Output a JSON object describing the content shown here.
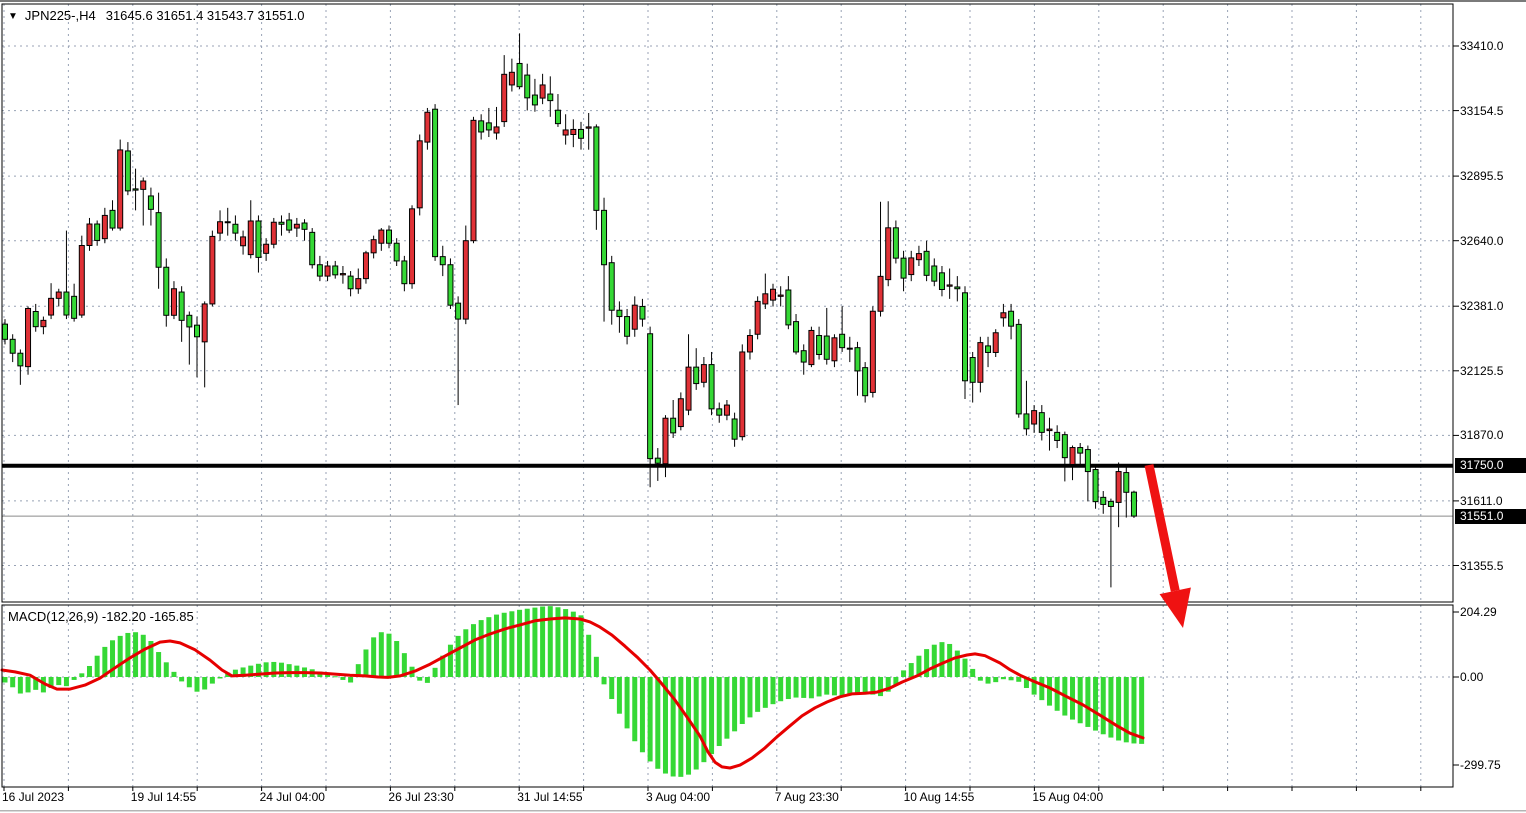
{
  "window": {
    "title_symbol": "JPN225-,H4",
    "title_quote": "31645.6 31651.4 31543.7 31551.0",
    "dropdown_icon": "▼"
  },
  "indicator": {
    "label": "MACD(12,26,9) -182.20 -165.85",
    "name": "MACD",
    "params": [
      12,
      26,
      9
    ],
    "macd_value": -182.2,
    "signal_value": -165.85
  },
  "price_scale": {
    "labels": [
      "33410.0",
      "33154.5",
      "32895.5",
      "32640.0",
      "32381.0",
      "32125.5",
      "31870.0",
      "31611.0",
      "31355.5"
    ],
    "badges": [
      {
        "text": "31750.0",
        "value": 31750.0,
        "role": "resistance-level"
      },
      {
        "text": "31551.0",
        "value": 31551.0,
        "role": "current-price"
      }
    ],
    "macd_labels": [
      "204.29",
      "0.00",
      "-299.75"
    ]
  },
  "time_scale": {
    "labels": [
      {
        "text": "16 Jul 2023",
        "grid_index": 0
      },
      {
        "text": "19 Jul 14:55",
        "grid_index": 2
      },
      {
        "text": "24 Jul 04:00",
        "grid_index": 4
      },
      {
        "text": "26 Jul 23:30",
        "grid_index": 6
      },
      {
        "text": "31 Jul 14:55",
        "grid_index": 8
      },
      {
        "text": "3 Aug 04:00",
        "grid_index": 10
      },
      {
        "text": "7 Aug 23:30",
        "grid_index": 12
      },
      {
        "text": "10 Aug 14:55",
        "grid_index": 14
      },
      {
        "text": "15 Aug 04:00",
        "grid_index": 16
      }
    ]
  },
  "colors": {
    "bull": "#e03136",
    "bear": "#35d835",
    "wick": "#000000",
    "macd_histogram": "#35d835",
    "macd_signal": "#e60000",
    "grid": "#98a2b5",
    "level_line": "#000000",
    "current_price_line": "#8a8a8a",
    "arrow": "#ef1212",
    "badge_bg": "#000000",
    "badge_text": "#ffffff",
    "border": "#000000"
  },
  "chart_data": {
    "type": "candlestick+macd",
    "symbol": "JPN225-",
    "timeframe": "H4",
    "last_ohlc": {
      "open": 31645.6,
      "high": 31651.4,
      "low": 31543.7,
      "close": 31551.0
    },
    "price_gridlines": [
      33410.0,
      33154.5,
      32895.5,
      32640.0,
      32381.0,
      32125.5,
      31870.0,
      31611.0,
      31355.5
    ],
    "price_axis_range": [
      31170.0,
      33585.0
    ],
    "macd_gridlines": [
      204.29,
      0.0,
      -299.75
    ],
    "levels": {
      "resistance": 31750.0,
      "current_price": 31551.0
    },
    "candles": [
      [
        32310,
        32330,
        32230,
        32250
      ],
      [
        32250,
        32270,
        32160,
        32195
      ],
      [
        32195,
        32210,
        32070,
        32145
      ],
      [
        32142,
        32380,
        32110,
        32372
      ],
      [
        32360,
        32390,
        32280,
        32300
      ],
      [
        32300,
        32340,
        32270,
        32325
      ],
      [
        32346,
        32472,
        32330,
        32412
      ],
      [
        32412,
        32450,
        32380,
        32437
      ],
      [
        32437,
        32680,
        32330,
        32346
      ],
      [
        32420,
        32470,
        32320,
        32333
      ],
      [
        32346,
        32660,
        32335,
        32621
      ],
      [
        32621,
        32730,
        32600,
        32706
      ],
      [
        32706,
        32720,
        32620,
        32641
      ],
      [
        32648,
        32770,
        32630,
        32740
      ],
      [
        32760,
        32800,
        32680,
        32690
      ],
      [
        32690,
        33040,
        32680,
        32999
      ],
      [
        32995,
        33030,
        32820,
        32837
      ],
      [
        32845,
        32925,
        32760,
        32840
      ],
      [
        32843,
        32890,
        32700,
        32876
      ],
      [
        32817,
        32850,
        32700,
        32764
      ],
      [
        32751,
        32830,
        32450,
        32535
      ],
      [
        32535,
        32570,
        32300,
        32345
      ],
      [
        32345,
        32480,
        32330,
        32450
      ],
      [
        32437,
        32460,
        32240,
        32325
      ],
      [
        32345,
        32360,
        32150,
        32299
      ],
      [
        32306,
        32340,
        32100,
        32260
      ],
      [
        32240,
        32400,
        32060,
        32390
      ],
      [
        32390,
        32680,
        32380,
        32657
      ],
      [
        32670,
        32760,
        32640,
        32715
      ],
      [
        32715,
        32770,
        32660,
        32712
      ],
      [
        32705,
        32740,
        32640,
        32670
      ],
      [
        32620,
        32680,
        32585,
        32655
      ],
      [
        32585,
        32800,
        32570,
        32718
      ],
      [
        32718,
        32740,
        32514,
        32574
      ],
      [
        32590,
        32650,
        32560,
        32626
      ],
      [
        32626,
        32730,
        32610,
        32713
      ],
      [
        32713,
        32740,
        32660,
        32705
      ],
      [
        32722,
        32750,
        32670,
        32682
      ],
      [
        32690,
        32730,
        32655,
        32705
      ],
      [
        32710,
        32725,
        32640,
        32685
      ],
      [
        32673,
        32690,
        32530,
        32545
      ],
      [
        32545,
        32580,
        32480,
        32500
      ],
      [
        32500,
        32560,
        32480,
        32540
      ],
      [
        32540,
        32560,
        32490,
        32505
      ],
      [
        32505,
        32540,
        32470,
        32510
      ],
      [
        32500,
        32520,
        32420,
        32450
      ],
      [
        32450,
        32530,
        32430,
        32490
      ],
      [
        32490,
        32600,
        32470,
        32592
      ],
      [
        32592,
        32660,
        32570,
        32644
      ],
      [
        32630,
        32690,
        32600,
        32682
      ],
      [
        32682,
        32700,
        32610,
        32630
      ],
      [
        32630,
        32650,
        32540,
        32560
      ],
      [
        32560,
        32580,
        32440,
        32470
      ],
      [
        32470,
        32780,
        32450,
        32766
      ],
      [
        32770,
        33060,
        32740,
        33035
      ],
      [
        33030,
        33165,
        33000,
        33148
      ],
      [
        33160,
        33180,
        32560,
        32577
      ],
      [
        32577,
        32620,
        32500,
        32545
      ],
      [
        32545,
        32570,
        32370,
        32385
      ],
      [
        32393,
        32420,
        31990,
        32330
      ],
      [
        32330,
        32700,
        32310,
        32640
      ],
      [
        32640,
        33130,
        32630,
        33116
      ],
      [
        33114,
        33140,
        33040,
        33070
      ],
      [
        33106,
        33165,
        33050,
        33078
      ],
      [
        33066,
        33169,
        33040,
        33090
      ],
      [
        33111,
        33374,
        33090,
        33298
      ],
      [
        33256,
        33360,
        33230,
        33306
      ],
      [
        33341,
        33460,
        33240,
        33249
      ],
      [
        33295,
        33340,
        33155,
        33205
      ],
      [
        33216,
        33280,
        33150,
        33177
      ],
      [
        33204,
        33300,
        33180,
        33256
      ],
      [
        33220,
        33290,
        33130,
        33194
      ],
      [
        33156,
        33220,
        33090,
        33103
      ],
      [
        33058,
        33140,
        33020,
        33078
      ],
      [
        33060,
        33120,
        33010,
        33080
      ],
      [
        33080,
        33110,
        33000,
        33045
      ],
      [
        33085,
        33145,
        33000,
        33090
      ],
      [
        33090,
        33100,
        32683,
        32760
      ],
      [
        32760,
        32810,
        32320,
        32545
      ],
      [
        32553,
        32580,
        32308,
        32365
      ],
      [
        32365,
        32400,
        32276,
        32340
      ],
      [
        32340,
        32370,
        32230,
        32262
      ],
      [
        32290,
        32420,
        32260,
        32385
      ],
      [
        32380,
        32410,
        32300,
        32330
      ],
      [
        32272,
        32300,
        31665,
        31778
      ],
      [
        31780,
        31820,
        31690,
        31760
      ],
      [
        31758,
        31950,
        31705,
        31938
      ],
      [
        31938,
        32010,
        31860,
        31880
      ],
      [
        31905,
        32040,
        31890,
        32015
      ],
      [
        31970,
        32270,
        31950,
        32140
      ],
      [
        32140,
        32215,
        32050,
        32075
      ],
      [
        32080,
        32180,
        32060,
        32150
      ],
      [
        32150,
        32200,
        31950,
        31975
      ],
      [
        31975,
        32000,
        31920,
        31950
      ],
      [
        31950,
        32010,
        31930,
        31990
      ],
      [
        31935,
        31960,
        31825,
        31855
      ],
      [
        31865,
        32230,
        31850,
        32200
      ],
      [
        32200,
        32290,
        32170,
        32265
      ],
      [
        32270,
        32420,
        32250,
        32400
      ],
      [
        32390,
        32510,
        32370,
        32430
      ],
      [
        32405,
        32470,
        32380,
        32448
      ],
      [
        32420,
        32460,
        32380,
        32425
      ],
      [
        32445,
        32500,
        32290,
        32307
      ],
      [
        32320,
        32350,
        32190,
        32200
      ],
      [
        32205,
        32230,
        32110,
        32160
      ],
      [
        32150,
        32300,
        32140,
        32285
      ],
      [
        32265,
        32300,
        32170,
        32190
      ],
      [
        32263,
        32374,
        32150,
        32171
      ],
      [
        32165,
        32270,
        32140,
        32256
      ],
      [
        32270,
        32381,
        32200,
        32217
      ],
      [
        32211,
        32260,
        32160,
        32215
      ],
      [
        32217,
        32240,
        32027,
        32125
      ],
      [
        32138,
        32160,
        32000,
        32027
      ],
      [
        32040,
        32380,
        32020,
        32361
      ],
      [
        32361,
        32794,
        32340,
        32499
      ],
      [
        32486,
        32796,
        32460,
        32691
      ],
      [
        32691,
        32720,
        32550,
        32571
      ],
      [
        32571,
        32600,
        32440,
        32492
      ],
      [
        32506,
        32600,
        32480,
        32572
      ],
      [
        32565,
        32620,
        32540,
        32589
      ],
      [
        32598,
        32640,
        32480,
        32503
      ],
      [
        32540,
        32570,
        32460,
        32480
      ],
      [
        32513,
        32540,
        32420,
        32447
      ],
      [
        32460,
        32530,
        32410,
        32465
      ],
      [
        32457,
        32500,
        32400,
        32450
      ],
      [
        32434,
        32460,
        32014,
        32086
      ],
      [
        32178,
        32200,
        32000,
        32080
      ],
      [
        32080,
        32260,
        32040,
        32237
      ],
      [
        32224,
        32260,
        32140,
        32198
      ],
      [
        32198,
        32290,
        32180,
        32276
      ],
      [
        32335,
        32390,
        32300,
        32355
      ],
      [
        32361,
        32390,
        32250,
        32302
      ],
      [
        32309,
        32330,
        31940,
        31955
      ],
      [
        31955,
        32086,
        31870,
        31896
      ],
      [
        31915,
        31990,
        31880,
        31968
      ],
      [
        31960,
        31990,
        31850,
        31882
      ],
      [
        31889,
        31940,
        31810,
        31895
      ],
      [
        31882,
        31910,
        31820,
        31850
      ],
      [
        31873,
        31885,
        31688,
        31782
      ],
      [
        31755,
        31830,
        31693,
        31822
      ],
      [
        31822,
        31840,
        31750,
        31800
      ],
      [
        31814,
        31830,
        31609,
        31727
      ],
      [
        31735,
        31750,
        31580,
        31608
      ],
      [
        31625,
        31650,
        31560,
        31597
      ],
      [
        31609,
        31620,
        31269,
        31589
      ],
      [
        31605,
        31763,
        31507,
        31727
      ],
      [
        31723,
        31750,
        31545,
        31645
      ],
      [
        31645.6,
        31651.4,
        31543.7,
        31551.0
      ]
    ],
    "macd_histogram": [
      -15,
      -28,
      -45,
      -42,
      -35,
      -42,
      -30,
      -22,
      -25,
      -8,
      10,
      30,
      58,
      82,
      100,
      112,
      120,
      122,
      115,
      98,
      68,
      40,
      14,
      -12,
      -28,
      -40,
      -34,
      -18,
      -4,
      12,
      20,
      26,
      31,
      36,
      40,
      41,
      39,
      35,
      31,
      26,
      21,
      15,
      9,
      2,
      -8,
      -15,
      35,
      75,
      108,
      122,
      118,
      98,
      65,
      28,
      -10,
      -16,
      25,
      58,
      88,
      112,
      130,
      144,
      155,
      163,
      170,
      175,
      179,
      183,
      186,
      189,
      192,
      193,
      190,
      185,
      178,
      168,
      115,
      55,
      -20,
      -60,
      -100,
      -140,
      -175,
      -205,
      -230,
      -250,
      -263,
      -271,
      -272,
      -266,
      -252,
      -232,
      -210,
      -188,
      -168,
      -148,
      -128,
      -110,
      -95,
      -84,
      -74,
      -66,
      -60,
      -56,
      -57,
      -58,
      -53,
      -48,
      -50,
      -52,
      -48,
      -44,
      -42,
      -48,
      -52,
      -40,
      -22,
      18,
      38,
      58,
      76,
      88,
      95,
      90,
      72,
      50,
      22,
      -10,
      -18,
      -14,
      -6,
      -9,
      -13,
      -30,
      -48,
      -63,
      -78,
      -92,
      -105,
      -116,
      -126,
      -136,
      -146,
      -156,
      -165,
      -173,
      -178,
      -181,
      -182.2
    ],
    "macd_signal": [
      [
        2,
        19
      ],
      [
        15,
        14
      ],
      [
        30,
        5
      ],
      [
        45,
        -19
      ],
      [
        57,
        -33
      ],
      [
        70,
        -33
      ],
      [
        85,
        -22
      ],
      [
        100,
        -3
      ],
      [
        115,
        25
      ],
      [
        130,
        52
      ],
      [
        145,
        76
      ],
      [
        160,
        95
      ],
      [
        170,
        98
      ],
      [
        180,
        93
      ],
      [
        195,
        74
      ],
      [
        210,
        46
      ],
      [
        222,
        19
      ],
      [
        232,
        3
      ],
      [
        245,
        5
      ],
      [
        260,
        8
      ],
      [
        275,
        11
      ],
      [
        290,
        12
      ],
      [
        305,
        12
      ],
      [
        320,
        11
      ],
      [
        335,
        8
      ],
      [
        350,
        5
      ],
      [
        365,
        3
      ],
      [
        378,
        0
      ],
      [
        388,
        -1
      ],
      [
        400,
        3
      ],
      [
        415,
        16
      ],
      [
        430,
        35
      ],
      [
        445,
        57
      ],
      [
        460,
        79
      ],
      [
        475,
        101
      ],
      [
        490,
        117
      ],
      [
        505,
        131
      ],
      [
        520,
        142
      ],
      [
        535,
        153
      ],
      [
        550,
        158
      ],
      [
        565,
        161
      ],
      [
        580,
        158
      ],
      [
        590,
        150
      ],
      [
        600,
        136
      ],
      [
        612,
        114
      ],
      [
        625,
        84
      ],
      [
        638,
        52
      ],
      [
        650,
        19
      ],
      [
        662,
        -19
      ],
      [
        675,
        -63
      ],
      [
        687,
        -109
      ],
      [
        700,
        -161
      ],
      [
        708,
        -204
      ],
      [
        715,
        -232
      ],
      [
        722,
        -245
      ],
      [
        730,
        -248
      ],
      [
        740,
        -240
      ],
      [
        752,
        -221
      ],
      [
        765,
        -193
      ],
      [
        777,
        -163
      ],
      [
        790,
        -133
      ],
      [
        802,
        -106
      ],
      [
        815,
        -84
      ],
      [
        827,
        -68
      ],
      [
        840,
        -54
      ],
      [
        852,
        -46
      ],
      [
        865,
        -44
      ],
      [
        877,
        -41
      ],
      [
        890,
        -30
      ],
      [
        902,
        -14
      ],
      [
        917,
        3
      ],
      [
        930,
        22
      ],
      [
        943,
        38
      ],
      [
        955,
        52
      ],
      [
        967,
        60
      ],
      [
        975,
        63
      ],
      [
        985,
        58
      ],
      [
        1000,
        38
      ],
      [
        1010,
        20
      ],
      [
        1020,
        5
      ],
      [
        1033,
        -11
      ],
      [
        1050,
        -30
      ],
      [
        1067,
        -54
      ],
      [
        1083,
        -76
      ],
      [
        1100,
        -104
      ],
      [
        1117,
        -133
      ],
      [
        1130,
        -153
      ],
      [
        1143,
        -165.85
      ]
    ],
    "annotations": [
      {
        "type": "arrow",
        "direction": "down",
        "from": [
          1149,
          465
        ],
        "to": [
          1183,
          628
        ]
      }
    ]
  }
}
